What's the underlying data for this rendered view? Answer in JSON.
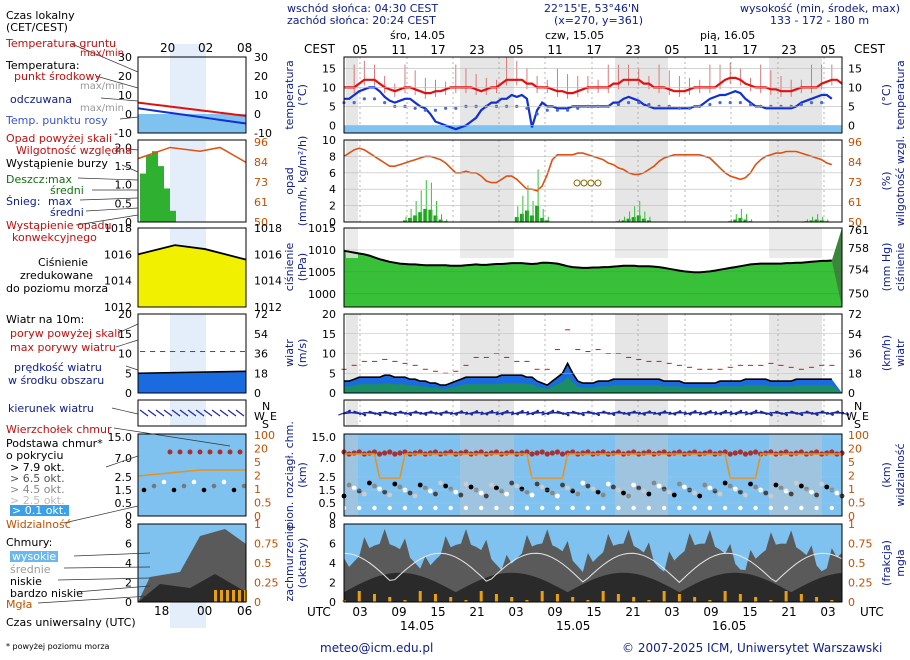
{
  "header": {
    "sunrise": "wschód słońca: 04:30 CEST",
    "sunset": "zachód słońca: 20:24 CEST",
    "coords": "22°15'E, 53°46'N",
    "grid": "(x=270, y=361)",
    "alt_label": "wysokość (min, środek, max)",
    "alt_values": "133 - 172 - 180 m"
  },
  "time": {
    "cest_label": "CEST",
    "utc_label": "UTC",
    "local_hours": [
      "05",
      "11",
      "17",
      "23",
      "05",
      "11",
      "17",
      "23",
      "05",
      "11",
      "17",
      "23",
      "05"
    ],
    "utc_hours": [
      "03",
      "09",
      "15",
      "21",
      "03",
      "09",
      "15",
      "21",
      "03",
      "09",
      "15",
      "21",
      "03"
    ],
    "days_top": [
      "śro, 14.05",
      "czw, 15.05",
      "pią, 16.05"
    ],
    "days_bottom": [
      "14.05",
      "15.05",
      "16.05"
    ],
    "legend_top_hours": [
      "20",
      "02",
      "08"
    ],
    "legend_bottom_hours": [
      "18",
      "00",
      "06"
    ]
  },
  "legend": {
    "local_time": "Czas lokalny",
    "local_time2": "(CET/CEST)",
    "soil_temp": "Temperatura gruntu",
    "maxmin": "max/min",
    "temperature": "Temperatura:",
    "midpoint": "punkt środkowy",
    "maxmin_gray": "max/min",
    "apparent": "odczuwana",
    "maxmin_gray2": "max/min",
    "dewpoint": "Temp. punktu rosy",
    "precip_over": "Opad powyżej skali",
    "humidity": "Wilgotność względna",
    "storm": "Wystąpienie burzy",
    "rain": "Deszcz:",
    "rain_max": "max",
    "rain_mean": "średni",
    "snow": "Śnieg:",
    "snow_max": "max",
    "snow_mean": "średni",
    "precip_conv1": "Wystąpienie opadu",
    "precip_conv2": "konwekcyjnego",
    "pressure1": "Ciśnienie",
    "pressure2": "zredukowane",
    "pressure3": "do poziomu morza",
    "wind10": "Wiatr na 10m:",
    "gust_over": "poryw powyżej skali",
    "gust_max": "max porywy wiatru",
    "wind_mean1": "prędkość wiatru",
    "wind_mean2": "w środku obszaru",
    "wind_dir": "kierunek wiatru",
    "cb": "Wierzchołek chmur",
    "cloud_base1": "Podstawa chmur*",
    "cloud_base2": "o pokryciu",
    "okt": [
      "> 7.9 okt.",
      "> 6.5 okt.",
      "> 4.5 okt.",
      "> 2.5 okt.",
      "> 0.1 okt."
    ],
    "visibility": "Widzialność",
    "clouds": "Chmury:",
    "high": "wysokie",
    "mid": "średnie",
    "low": "niskie",
    "vlow": "bardzo niskie",
    "fog": "Mgła",
    "utc": "Czas uniwersalny (UTC)",
    "footnote": "* powyżej poziomu morza"
  },
  "axis_titles": {
    "temp_l": "temperatura",
    "temp_l2": "(°C)",
    "temp_r": "(°C)",
    "temp_r2": "temperatura",
    "prec_l": "opad",
    "prec_l2": "(mm/h, kg/m²/h)",
    "prec_r": "(%)",
    "prec_r2": "wilgotność wzgl.",
    "pres_l": "ciśnienie",
    "pres_l2": "(hPa)",
    "pres_r": "(mm Hg)",
    "pres_r2": "ciśnienie",
    "wind_l": "wiatr",
    "wind_l2": "(m/s)",
    "wind_r": "(km/h)",
    "wind_r2": "wiatr",
    "cl_l": "pion. rozciągł. chm.",
    "cl_l2": "(km)",
    "cl_r": "(km)",
    "cl_r2": "widzialność",
    "cc_l": "zachmurzenie",
    "cc_l2": "(oktanty)",
    "cc_r": "(frakcja)",
    "cc_r2": "mgła"
  },
  "footer": {
    "email": "meteo@icm.edu.pl",
    "copyright": "© 2007-2025 ICM, Uniwersytet Warszawski"
  },
  "colors": {
    "temp": "#e01010",
    "apparent": "#1030d0",
    "dew": "#4a6ad8",
    "humidity": "#e05010",
    "rain": "#10a010",
    "pressure_fill": "#30b030",
    "wind_fill": "#1060e0",
    "sky": "#7fc2f0",
    "night": "#e6e6e6"
  },
  "chart_data": [
    {
      "type": "line",
      "name": "temperature",
      "ylim": [
        -2,
        18
      ],
      "yticks": [
        0,
        5,
        10,
        15
      ],
      "ylim_legend": [
        -10,
        30
      ],
      "series": [
        {
          "name": "punkt środkowy",
          "values": [
            10,
            10,
            10,
            11,
            12,
            12,
            12,
            11,
            10,
            9.5,
            9,
            9.5,
            10,
            10,
            9.5,
            9,
            8.5,
            8.5,
            9,
            9,
            9.5,
            10,
            10,
            10,
            10,
            10,
            9.5,
            9,
            9.5,
            10,
            10,
            11,
            12,
            12,
            12,
            12,
            11,
            11,
            10,
            10,
            10,
            9.5,
            9,
            9,
            8.5,
            8.5,
            9,
            9.5,
            10,
            10,
            10,
            10,
            10,
            11,
            11,
            12,
            12,
            12,
            12,
            11,
            11,
            10,
            10,
            10,
            9.5,
            9,
            9,
            9,
            9.5,
            10,
            10,
            10,
            10,
            10,
            11,
            12,
            12.5,
            12.5,
            12,
            11,
            10.5,
            10,
            10,
            10,
            9.5,
            9.5,
            9,
            9,
            9,
            9.5,
            10,
            10,
            10,
            10,
            11,
            11.5,
            12,
            12,
            11
          ]
        },
        {
          "name": "odczuwana",
          "values": [
            7,
            7,
            8,
            9,
            9.5,
            10,
            10,
            9,
            7.5,
            6.5,
            6,
            6.5,
            7,
            7,
            6,
            5,
            4.5,
            3,
            1,
            0.5,
            0,
            -0.5,
            -1,
            -0.5,
            0,
            1,
            2,
            4,
            5,
            6,
            6,
            7,
            7,
            8,
            7.5,
            8,
            7,
            -0.5,
            4,
            6,
            5,
            5,
            4.5,
            4.5,
            4.5,
            5,
            5,
            5,
            5,
            5,
            5,
            5,
            5,
            6,
            6,
            7,
            7.5,
            7,
            6.5,
            5.5,
            5,
            4.5,
            4.5,
            4.5,
            4.5,
            4.5,
            4.5,
            4.5,
            4.5,
            5,
            5,
            6,
            7,
            7.5,
            8,
            8,
            8.5,
            9,
            8.5,
            7,
            6,
            5,
            5,
            4.5,
            4.5,
            4.5,
            4.5,
            4.5,
            4.5,
            5,
            6,
            6.5,
            7,
            7.5,
            8,
            8,
            7
          ]
        },
        {
          "name": "Temp. punktu rosy",
          "values": [
            6,
            6,
            6,
            7,
            7,
            7,
            7,
            6,
            6,
            5.5,
            5,
            5,
            5,
            5,
            4.5,
            4.5,
            4,
            4,
            4,
            4.5,
            4.5,
            4.5,
            4.5,
            5,
            5,
            5,
            5,
            5,
            5,
            5,
            5,
            5,
            5,
            5,
            5,
            5,
            4.5,
            2,
            3,
            4,
            4,
            4,
            4,
            4,
            4,
            4.5,
            4.5,
            4.5,
            5,
            5,
            5,
            5,
            5,
            5.5,
            5.5,
            6,
            6,
            6,
            6,
            5.5,
            5.5,
            5,
            5,
            5,
            5,
            4.5,
            4.5,
            4.5,
            4.5,
            4.5,
            5,
            5,
            5.5,
            5.5,
            6,
            6,
            6,
            6,
            6,
            5.5,
            5.5,
            5.5,
            5,
            5,
            5,
            5,
            5,
            5,
            5,
            5.5,
            5.5,
            6,
            6,
            6,
            6,
            6
          ]
        }
      ]
    },
    {
      "type": "bar",
      "name": "precipitation",
      "ylim": [
        0,
        10
      ],
      "yticks": [
        0,
        2,
        4,
        6,
        8,
        10
      ],
      "humidity_ylim": [
        50,
        100
      ],
      "series": [
        {
          "name": "Wilgotność względna",
          "values": [
            90,
            92,
            94,
            95,
            94,
            92,
            90,
            88,
            86,
            84,
            84,
            85,
            86,
            87,
            88,
            89,
            90,
            90,
            89,
            88,
            86,
            83,
            80,
            80,
            81,
            80,
            80,
            78,
            75,
            74,
            74,
            76,
            78,
            78,
            76,
            73,
            70,
            70,
            69,
            72,
            79,
            88,
            91,
            91,
            91,
            91,
            92,
            92,
            91,
            90,
            89,
            88,
            86,
            85,
            83,
            82,
            80,
            79,
            79,
            80,
            82,
            84,
            87,
            89,
            90,
            91,
            91,
            91,
            91,
            91,
            91,
            90,
            89,
            86,
            83,
            80,
            78,
            77,
            76,
            77,
            80,
            85,
            88,
            90,
            91,
            92,
            92,
            93,
            93,
            93,
            92,
            91,
            90,
            89,
            88,
            86,
            85
          ]
        },
        {
          "name": "Deszcz średni",
          "values": [
            0,
            0,
            0,
            0,
            0,
            0,
            0,
            0,
            0,
            0,
            0,
            0,
            0.2,
            0.5,
            0.8,
            1.2,
            1.6,
            1.5,
            0.8,
            0.3,
            0.1,
            0,
            0,
            0,
            0,
            0,
            0,
            0,
            0,
            0,
            0,
            0,
            0,
            0,
            0.6,
            1.0,
            1.4,
            0.8,
            2.0,
            0.5,
            0.2,
            0,
            0,
            0,
            0,
            0,
            0,
            0,
            0,
            0,
            0,
            0,
            0,
            0,
            0.1,
            0.2,
            0.4,
            0.6,
            0.8,
            0.4,
            0.2,
            0,
            0,
            0,
            0,
            0,
            0,
            0,
            0,
            0,
            0,
            0,
            0,
            0,
            0,
            0,
            0.1,
            0.3,
            0.5,
            0.3,
            0.1,
            0,
            0,
            0,
            0,
            0,
            0,
            0,
            0,
            0,
            0,
            0.1,
            0.2,
            0.3,
            0.2,
            0.1,
            0
          ]
        }
      ]
    },
    {
      "type": "area",
      "name": "pressure",
      "ylim": [
        997,
        1015
      ],
      "yticks": [
        1000,
        1005,
        1010,
        1015
      ],
      "right_yticks": [
        750,
        754,
        758,
        761
      ],
      "values": [
        1009.8,
        1009.6,
        1009.4,
        1009.2,
        1009,
        1008.7,
        1008.3,
        1007.9,
        1007.6,
        1007.3,
        1007.1,
        1006.9,
        1006.8,
        1006.7,
        1006.7,
        1006.6,
        1006.5,
        1006.5,
        1006.5,
        1006.5,
        1006.5,
        1006.4,
        1006.4,
        1006.4,
        1006.5,
        1006.6,
        1006.7,
        1006.6,
        1006.6,
        1006.7,
        1006.8,
        1006.8,
        1006.9,
        1007,
        1007,
        1007,
        1006.9,
        1006.8,
        1006.9,
        1007.1,
        1007.1,
        1007,
        1006.9,
        1006.6,
        1006.3,
        1006.1,
        1006,
        1005.9,
        1005.9,
        1006,
        1006,
        1006.1,
        1006.1,
        1006.2,
        1006.3,
        1006.4,
        1006.4,
        1006.4,
        1006.3,
        1006.3,
        1006.3,
        1006.2,
        1006.1,
        1005.9,
        1005.7,
        1005.5,
        1005.3,
        1005.1,
        1005,
        1004.9,
        1004.9,
        1005,
        1005.1,
        1005.3,
        1005.5,
        1005.7,
        1005.9,
        1006.1,
        1006.3,
        1006.5,
        1006.7,
        1006.8,
        1006.9,
        1006.9,
        1006.9,
        1006.9,
        1006.9,
        1007,
        1007,
        1007.1,
        1007.1,
        1007.2,
        1007.3,
        1007.4,
        1007.5,
        1007.5,
        1007.6
      ]
    },
    {
      "type": "area",
      "name": "wind",
      "ylim": [
        0,
        20
      ],
      "yticks": [
        0,
        5,
        10,
        15,
        20
      ],
      "right_yticks": [
        0,
        18,
        36,
        54,
        72
      ],
      "series": [
        {
          "name": "prędkość wiatru",
          "values": [
            3,
            3,
            3.5,
            4,
            4,
            4,
            4,
            4,
            4.5,
            4.5,
            4,
            4,
            4,
            3.5,
            3.5,
            3,
            3,
            2.5,
            2.5,
            2,
            2,
            2.5,
            3,
            3.5,
            4,
            4,
            4,
            4,
            4,
            4,
            4,
            4.5,
            4.5,
            4.5,
            4.5,
            4.5,
            4,
            4,
            3,
            2.5,
            2,
            3,
            4,
            5,
            7.5,
            5,
            3,
            2.5,
            2.5,
            2.5,
            3,
            3,
            3,
            3.5,
            3.5,
            3.5,
            3.5,
            3.5,
            3.5,
            3.5,
            3.5,
            3.5,
            3.5,
            3,
            3,
            3,
            3,
            2.5,
            2.5,
            2.5,
            2.5,
            2.5,
            2.5,
            2.5,
            3,
            3,
            3,
            3,
            3,
            3.5,
            3.5,
            3.5,
            3.5,
            3.5,
            3,
            3,
            3,
            3,
            3,
            3.5,
            3.5,
            3.5,
            3.5,
            3.5,
            3.5,
            3.5,
            3.5
          ]
        },
        {
          "name": "max porywy wiatru",
          "values": [
            6,
            6.5,
            7,
            7,
            8,
            8,
            8,
            8.5,
            8.5,
            8,
            8,
            7.5,
            7.5,
            7,
            7,
            6.5,
            6,
            6,
            5.5,
            5.5,
            5,
            5,
            5.5,
            6,
            7,
            8,
            9,
            9,
            9,
            10,
            10,
            9.5,
            9,
            8.5,
            8,
            8,
            8,
            7,
            6,
            6,
            6,
            8,
            11,
            12,
            16,
            13,
            11,
            10,
            10.5,
            11,
            11,
            11,
            10,
            10,
            10,
            9.5,
            9,
            8.5,
            8.5,
            8,
            8,
            8,
            8,
            7.5,
            7.5,
            7,
            7,
            7,
            6.5,
            6.5,
            6,
            6,
            6,
            6,
            6,
            6,
            6.5,
            7,
            7,
            7,
            7,
            7,
            7,
            7.5,
            7.5,
            7,
            7,
            6.5,
            6.5,
            6,
            6,
            6,
            6.5,
            7,
            7,
            7,
            7
          ]
        }
      ]
    },
    {
      "type": "scatter",
      "name": "cloud extent and visibility",
      "ylim": [
        0,
        15
      ],
      "yticks": [
        0,
        0.5,
        1.5,
        2.5,
        7,
        15
      ],
      "right_yticks": [
        0,
        0.5,
        1,
        2,
        5,
        20,
        100
      ]
    },
    {
      "type": "area",
      "name": "cloud cover",
      "ylim": [
        0,
        8
      ],
      "yticks": [
        0,
        2,
        4,
        6,
        8
      ],
      "right_yticks": [
        0,
        0.25,
        0.5,
        0.75,
        1
      ]
    }
  ]
}
